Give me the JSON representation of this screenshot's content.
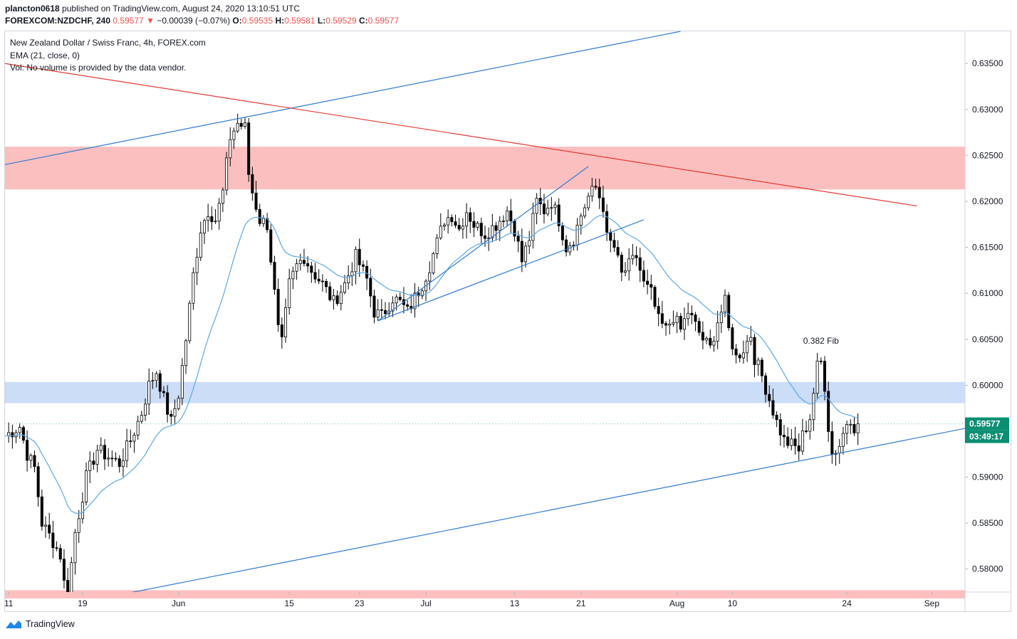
{
  "header": {
    "author": "plancton0618",
    "published_text": "published on TradingView.com, August 24, 2020 13:10:51 UTC",
    "symbol": "FOREXCOM:NZDCHF, 240",
    "last": "0.59577",
    "change_arrow": "▼",
    "change": "−0.00039 (−0.07%)",
    "o_label": "O:",
    "o_value": "0.59535",
    "h_label": "H:",
    "h_value": "0.59581",
    "l_label": "L:",
    "l_value": "0.59529",
    "c_label": "C:",
    "c_value": "0.59577"
  },
  "legend": {
    "title": "New Zealand Dollar / Swiss Franc, 4h, FOREX.com",
    "ema": "EMA (21, close, 0)",
    "vol": "Vol: No volume is provided by the data vendor."
  },
  "footer": {
    "brand": "TradingView"
  },
  "colors": {
    "up": "#ffffff",
    "down": "#000000",
    "wick": "#000000",
    "ema": "#5aa9e6",
    "trend_blue": "#2f7bd1",
    "trend_red": "#e53935",
    "zone_red": "#fcbcbc",
    "zone_blue": "#c8dbf7",
    "price_badge": "#0b8f73",
    "grid": "#f0f3fa"
  },
  "chart_data": {
    "type": "candlestick",
    "title": "New Zealand Dollar / Swiss Franc, 4h, FOREX.com",
    "ylim": [
      0.5775,
      0.6385
    ],
    "xlim": [
      0,
      260
    ],
    "y_ticks": [
      "0.63500",
      "0.63000",
      "0.62500",
      "0.62000",
      "0.61500",
      "0.61000",
      "0.60500",
      "0.60000",
      "0.59000",
      "0.58500",
      "0.58000"
    ],
    "x_ticks": [
      {
        "label": "11",
        "x": 1
      },
      {
        "label": "19",
        "x": 21
      },
      {
        "label": "Jun",
        "x": 47
      },
      {
        "label": "15",
        "x": 77
      },
      {
        "label": "23",
        "x": 96
      },
      {
        "label": "Jul",
        "x": 114
      },
      {
        "label": "13",
        "x": 138
      },
      {
        "label": "21",
        "x": 156
      },
      {
        "label": "Aug",
        "x": 182
      },
      {
        "label": "10",
        "x": 197
      },
      {
        "label": "24",
        "x": 228
      },
      {
        "label": "Sep",
        "x": 251
      }
    ],
    "close_anchors": [
      [
        0,
        0.5945
      ],
      [
        4,
        0.5955
      ],
      [
        6,
        0.5925
      ],
      [
        8,
        0.591
      ],
      [
        10,
        0.585
      ],
      [
        13,
        0.583
      ],
      [
        15,
        0.5815
      ],
      [
        16,
        0.5785
      ],
      [
        17,
        0.5772
      ],
      [
        19,
        0.584
      ],
      [
        22,
        0.59
      ],
      [
        25,
        0.593
      ],
      [
        28,
        0.5922
      ],
      [
        31,
        0.5915
      ],
      [
        34,
        0.594
      ],
      [
        37,
        0.597
      ],
      [
        39,
        0.6
      ],
      [
        41,
        0.6015
      ],
      [
        43,
        0.5985
      ],
      [
        45,
        0.596
      ],
      [
        47,
        0.599
      ],
      [
        49,
        0.605
      ],
      [
        51,
        0.612
      ],
      [
        53,
        0.617
      ],
      [
        55,
        0.619
      ],
      [
        57,
        0.618
      ],
      [
        59,
        0.621
      ],
      [
        61,
        0.627
      ],
      [
        63,
        0.6285
      ],
      [
        65,
        0.628
      ],
      [
        66,
        0.623
      ],
      [
        67,
        0.621
      ],
      [
        69,
        0.618
      ],
      [
        71,
        0.6175
      ],
      [
        73,
        0.61
      ],
      [
        74,
        0.606
      ],
      [
        75,
        0.6045
      ],
      [
        77,
        0.611
      ],
      [
        79,
        0.613
      ],
      [
        81,
        0.614
      ],
      [
        83,
        0.6125
      ],
      [
        86,
        0.611
      ],
      [
        89,
        0.609
      ],
      [
        92,
        0.611
      ],
      [
        95,
        0.614
      ],
      [
        98,
        0.6115
      ],
      [
        100,
        0.608
      ],
      [
        102,
        0.6075
      ],
      [
        105,
        0.6095
      ],
      [
        107,
        0.609
      ],
      [
        109,
        0.608
      ],
      [
        111,
        0.6095
      ],
      [
        113,
        0.611
      ],
      [
        115,
        0.613
      ],
      [
        117,
        0.6155
      ],
      [
        119,
        0.618
      ],
      [
        121,
        0.6185
      ],
      [
        123,
        0.617
      ],
      [
        125,
        0.619
      ],
      [
        127,
        0.6175
      ],
      [
        130,
        0.6165
      ],
      [
        133,
        0.6175
      ],
      [
        136,
        0.619
      ],
      [
        138,
        0.617
      ],
      [
        140,
        0.6135
      ],
      [
        142,
        0.616
      ],
      [
        144,
        0.62
      ],
      [
        146,
        0.619
      ],
      [
        148,
        0.62
      ],
      [
        150,
        0.618
      ],
      [
        152,
        0.615
      ],
      [
        154,
        0.616
      ],
      [
        156,
        0.6185
      ],
      [
        158,
        0.6205
      ],
      [
        160,
        0.6215
      ],
      [
        162,
        0.6195
      ],
      [
        163,
        0.616
      ],
      [
        165,
        0.615
      ],
      [
        167,
        0.612
      ],
      [
        169,
        0.613
      ],
      [
        171,
        0.614
      ],
      [
        173,
        0.611
      ],
      [
        175,
        0.61
      ],
      [
        177,
        0.607
      ],
      [
        179,
        0.606
      ],
      [
        181,
        0.6075
      ],
      [
        183,
        0.606
      ],
      [
        185,
        0.608
      ],
      [
        187,
        0.6065
      ],
      [
        189,
        0.605
      ],
      [
        191,
        0.604
      ],
      [
        193,
        0.607
      ],
      [
        195,
        0.609
      ],
      [
        196,
        0.606
      ],
      [
        198,
        0.603
      ],
      [
        200,
        0.604
      ],
      [
        202,
        0.6055
      ],
      [
        203,
        0.603
      ],
      [
        205,
        0.601
      ],
      [
        207,
        0.5985
      ],
      [
        209,
        0.596
      ],
      [
        211,
        0.594
      ],
      [
        213,
        0.5935
      ],
      [
        215,
        0.593
      ],
      [
        216,
        0.5945
      ],
      [
        218,
        0.5965
      ],
      [
        220,
        0.602
      ],
      [
        221,
        0.6025
      ],
      [
        222,
        0.6
      ],
      [
        223,
        0.5955
      ],
      [
        224,
        0.5925
      ],
      [
        226,
        0.5935
      ],
      [
        228,
        0.596
      ],
      [
        229,
        0.5965
      ],
      [
        230,
        0.5955
      ],
      [
        231,
        0.5958
      ]
    ],
    "ema": {
      "period": 21,
      "label": "EMA (21, close, 0)"
    },
    "zones": [
      {
        "color": "zone_red",
        "y1": 0.62595,
        "y2": 0.6213
      },
      {
        "color": "zone_blue",
        "y1": 0.60035,
        "y2": 0.59805
      },
      {
        "color": "zone_red",
        "y1": 0.5777,
        "y2": 0.5768
      }
    ],
    "trendlines": [
      {
        "color": "trend_blue",
        "x1": 0,
        "y1": 0.624,
        "x2": 183,
        "y2": 0.6385
      },
      {
        "color": "trend_red",
        "x1": 0,
        "y1": 0.635,
        "x2": 247,
        "y2": 0.6195
      },
      {
        "color": "trend_blue",
        "x1": 26,
        "y1": 0.5768,
        "x2": 260,
        "y2": 0.5953
      },
      {
        "color": "trend_blue",
        "x1": 101,
        "y1": 0.607,
        "x2": 158,
        "y2": 0.6238
      },
      {
        "color": "trend_blue",
        "x1": 101,
        "y1": 0.607,
        "x2": 173,
        "y2": 0.618
      }
    ],
    "annotations": [
      {
        "text": "0.382 Fib",
        "x": 221,
        "y": 0.6045
      }
    ],
    "last_price_label": "0.59577",
    "countdown_label": "03:49:17"
  }
}
